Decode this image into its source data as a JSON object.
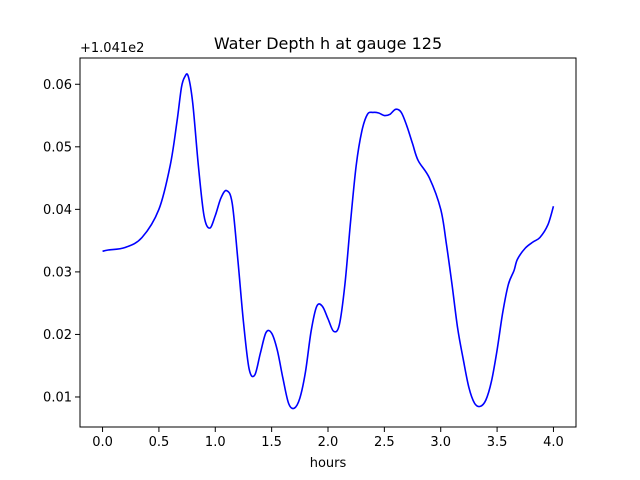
{
  "chart_data": {
    "type": "line",
    "title": "Water Depth h at gauge 125",
    "xlabel": "hours",
    "ylabel": "",
    "offset_label": "+1.041e2",
    "xlim": [
      -0.2,
      4.2
    ],
    "ylim": [
      0.0052,
      0.0642
    ],
    "x_ticks": [
      0.0,
      0.5,
      1.0,
      1.5,
      2.0,
      2.5,
      3.0,
      3.5,
      4.0
    ],
    "x_tick_labels": [
      "0.0",
      "0.5",
      "1.0",
      "1.5",
      "2.0",
      "2.5",
      "3.0",
      "3.5",
      "4.0"
    ],
    "y_ticks": [
      0.01,
      0.02,
      0.03,
      0.04,
      0.05,
      0.06
    ],
    "y_tick_labels": [
      "0.01",
      "0.02",
      "0.03",
      "0.04",
      "0.05",
      "0.06"
    ],
    "grid": false,
    "series": [
      {
        "color": "#0000ff",
        "x": [
          0.0,
          0.05,
          0.2,
          0.35,
          0.5,
          0.6,
          0.66,
          0.7,
          0.73,
          0.76,
          0.8,
          0.85,
          0.9,
          0.95,
          1.0,
          1.05,
          1.1,
          1.15,
          1.2,
          1.25,
          1.3,
          1.35,
          1.4,
          1.45,
          1.5,
          1.55,
          1.6,
          1.65,
          1.7,
          1.75,
          1.8,
          1.85,
          1.9,
          1.95,
          2.0,
          2.05,
          2.1,
          2.15,
          2.2,
          2.25,
          2.3,
          2.35,
          2.4,
          2.45,
          2.5,
          2.55,
          2.6,
          2.65,
          2.7,
          2.75,
          2.8,
          2.9,
          3.0,
          3.05,
          3.1,
          3.15,
          3.2,
          3.25,
          3.3,
          3.35,
          3.4,
          3.45,
          3.5,
          3.55,
          3.6,
          3.65,
          3.68,
          3.75,
          3.82,
          3.88,
          3.95,
          4.0
        ],
        "y": [
          0.0333,
          0.0335,
          0.0339,
          0.0355,
          0.04,
          0.047,
          0.054,
          0.0595,
          0.0612,
          0.0613,
          0.057,
          0.047,
          0.039,
          0.037,
          0.039,
          0.0418,
          0.043,
          0.041,
          0.032,
          0.022,
          0.0145,
          0.0135,
          0.017,
          0.0203,
          0.0202,
          0.0175,
          0.013,
          0.009,
          0.0082,
          0.0098,
          0.014,
          0.0205,
          0.0245,
          0.0245,
          0.0225,
          0.0205,
          0.0215,
          0.028,
          0.038,
          0.047,
          0.0525,
          0.0552,
          0.0555,
          0.0554,
          0.055,
          0.0552,
          0.056,
          0.0555,
          0.0533,
          0.0505,
          0.0478,
          0.045,
          0.04,
          0.0345,
          0.028,
          0.021,
          0.016,
          0.0115,
          0.009,
          0.0085,
          0.0095,
          0.0125,
          0.0175,
          0.0235,
          0.028,
          0.0302,
          0.032,
          0.0338,
          0.0348,
          0.0355,
          0.0375,
          0.0405
        ]
      }
    ]
  }
}
